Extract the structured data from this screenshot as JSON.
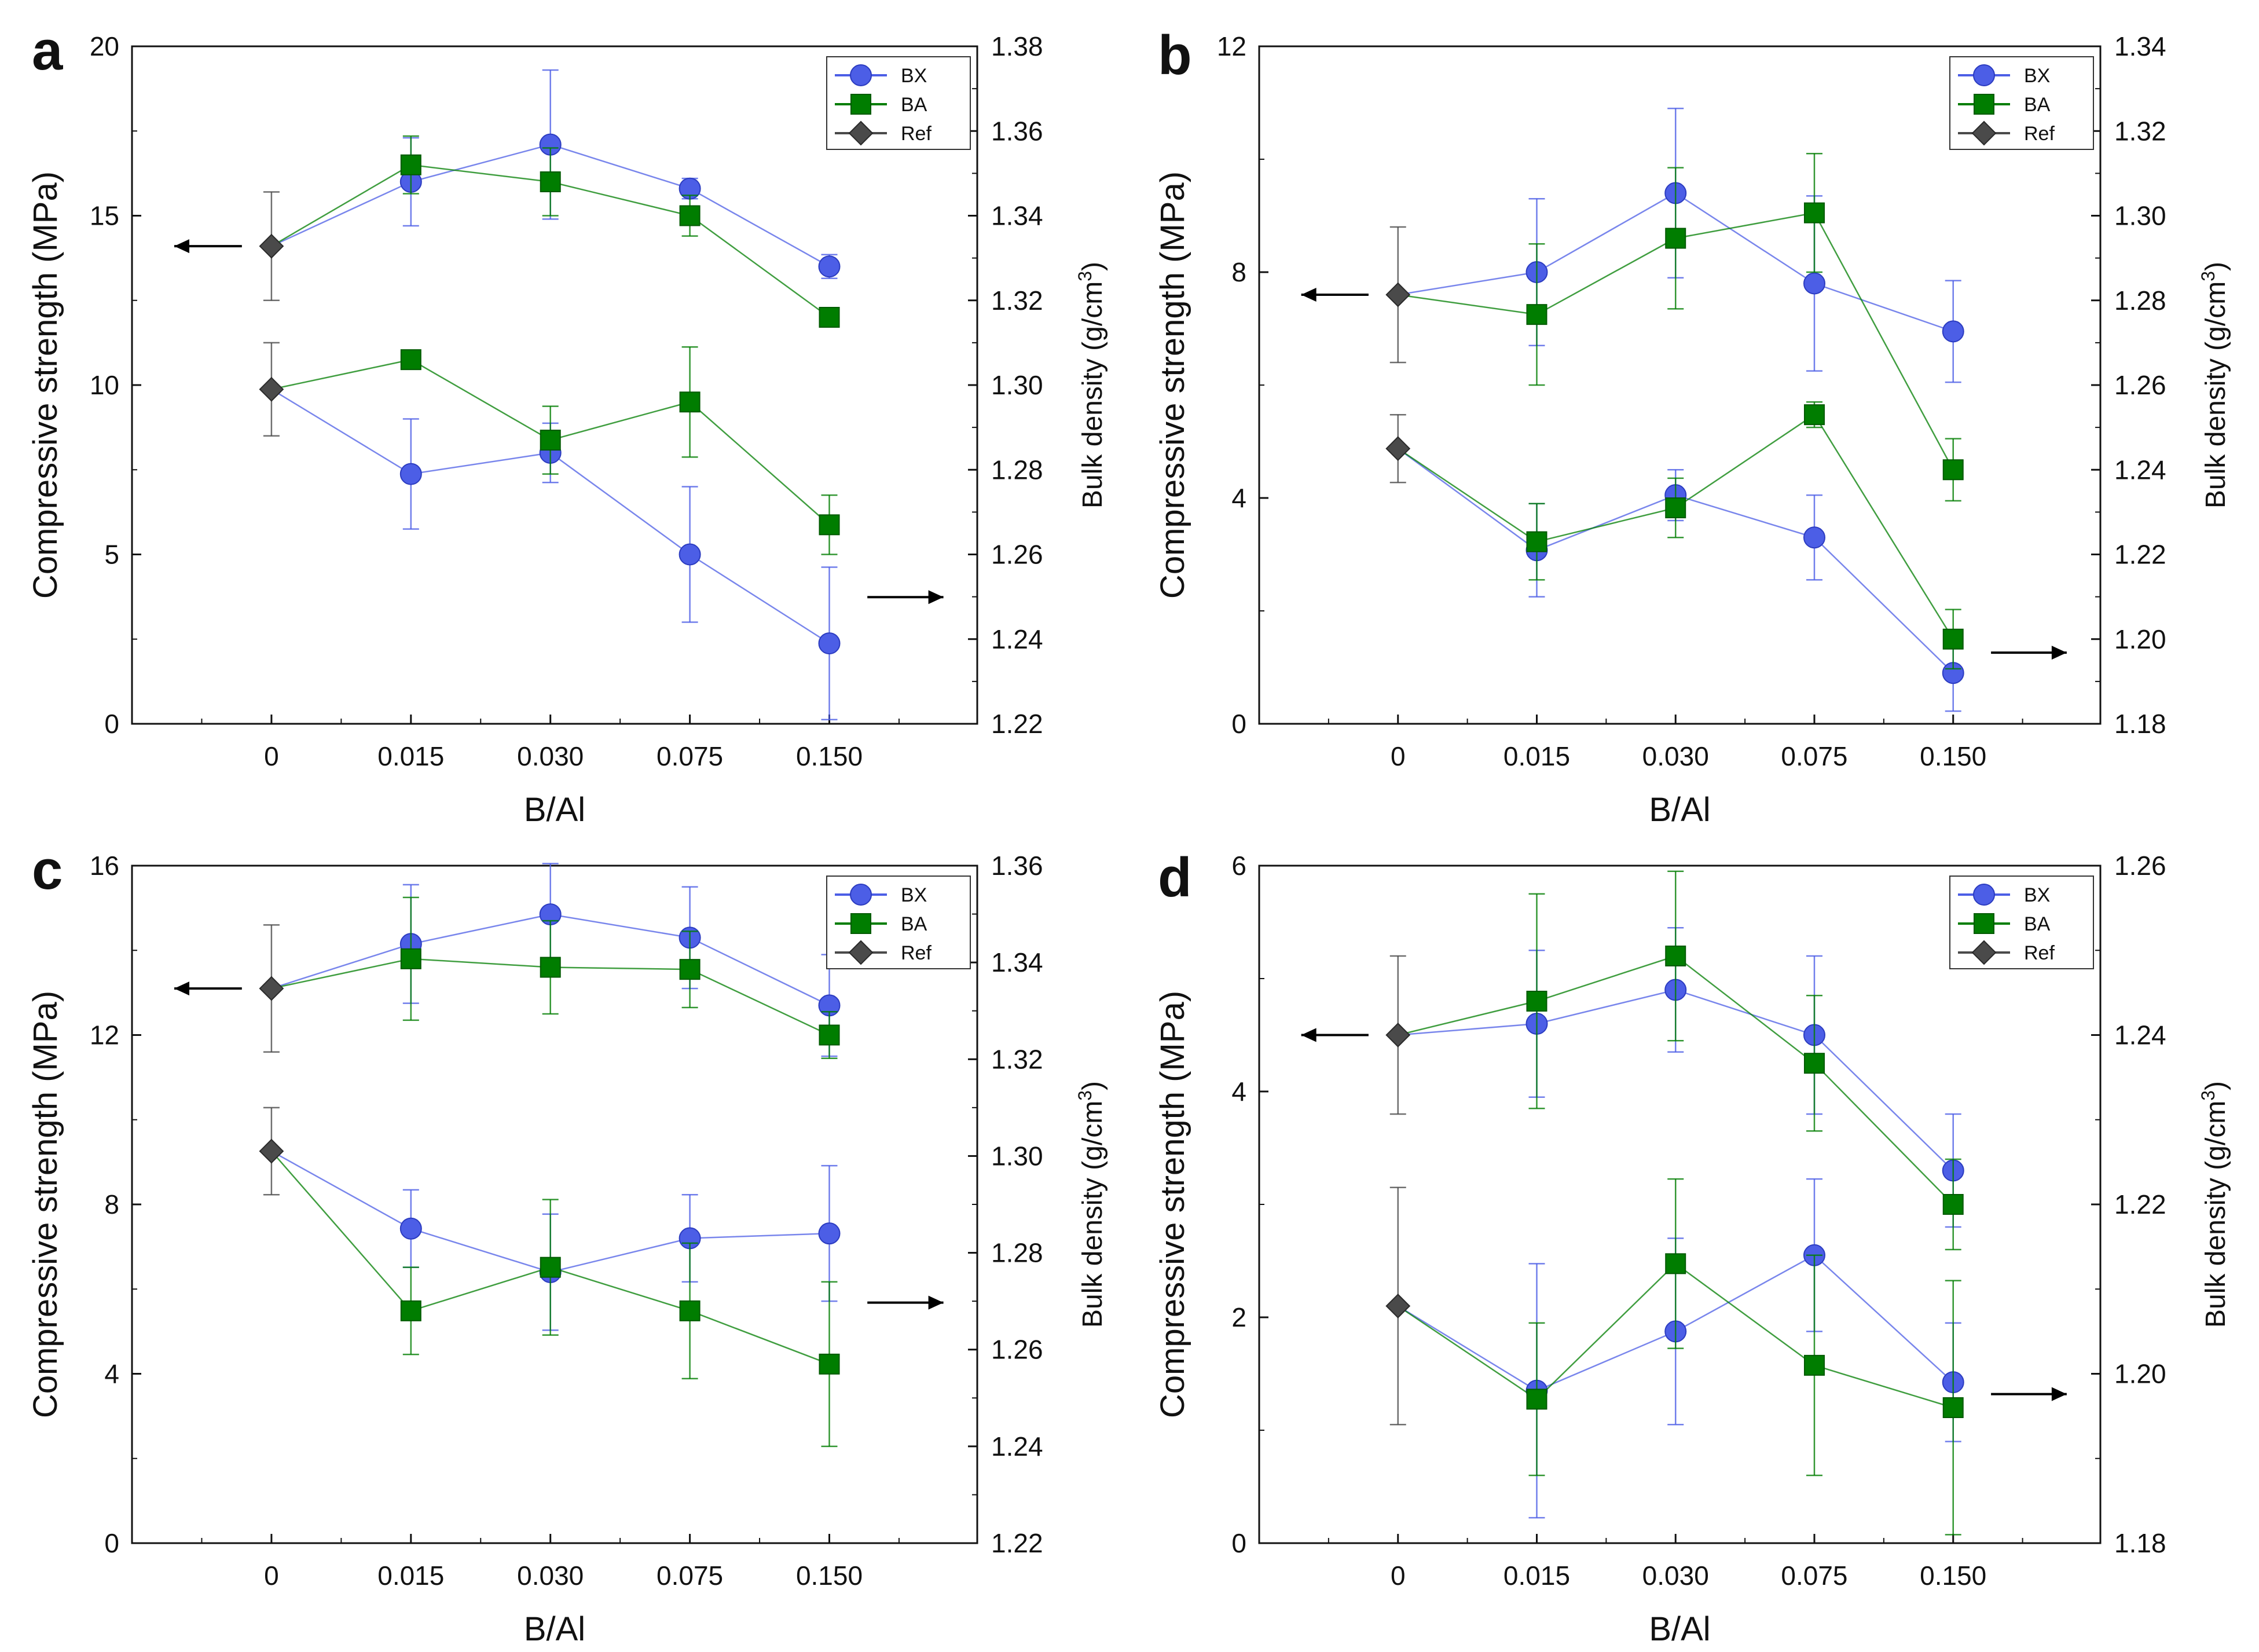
{
  "figure": {
    "panels": [
      {
        "letter": "a"
      },
      {
        "letter": "b"
      },
      {
        "letter": "c"
      },
      {
        "letter": "d"
      }
    ]
  },
  "colors": {
    "BX": "#4c5ee6",
    "BA": "#007d00",
    "Ref": "#4a4a4a",
    "axis": "#111111"
  },
  "chart_data": [
    {
      "type": "line",
      "panel": "a",
      "xlabel": "B/Al",
      "categories": [
        "0",
        "0.015",
        "0.030",
        "0.075",
        "0.150"
      ],
      "ylabel_left": "Compressive strength (MPa)",
      "ylabel_right": "Bulk density (g/cm3)",
      "ylim_left": [
        0,
        20
      ],
      "yticks_left": [
        "0",
        "5",
        "10",
        "15",
        "20"
      ],
      "ylim_right": [
        1.22,
        1.38
      ],
      "yticks_right": [
        "1.22",
        "1.24",
        "1.26",
        "1.28",
        "1.30",
        "1.32",
        "1.34",
        "1.36",
        "1.38"
      ],
      "legend": [
        "BX",
        "BA",
        "Ref"
      ],
      "legend_position": "top-right",
      "arrows": {
        "strength": "left",
        "density": "right"
      },
      "series": [
        {
          "name": "BX",
          "measure": "compressive_strength",
          "axis": "left",
          "values": [
            null,
            16.0,
            17.1,
            15.8,
            13.5
          ],
          "errors": [
            null,
            1.3,
            2.2,
            0.3,
            0.35
          ]
        },
        {
          "name": "BA",
          "measure": "compressive_strength",
          "axis": "left",
          "values": [
            null,
            16.5,
            16.0,
            15.0,
            12.0
          ],
          "errors": [
            null,
            0.85,
            1.0,
            0.6,
            0.2
          ]
        },
        {
          "name": "Ref",
          "measure": "compressive_strength",
          "axis": "left",
          "values": [
            14.1,
            null,
            null,
            null,
            null
          ],
          "errors": [
            1.6,
            null,
            null,
            null,
            null
          ]
        },
        {
          "name": "BX",
          "measure": "bulk_density",
          "axis": "right",
          "values": [
            null,
            1.279,
            1.284,
            1.26,
            1.239
          ],
          "errors": [
            null,
            0.013,
            0.007,
            0.016,
            0.018
          ]
        },
        {
          "name": "BA",
          "measure": "bulk_density",
          "axis": "right",
          "values": [
            null,
            1.306,
            1.287,
            1.296,
            1.267
          ],
          "errors": [
            null,
            0.001,
            0.008,
            0.013,
            0.007
          ]
        },
        {
          "name": "Ref",
          "measure": "bulk_density",
          "axis": "right",
          "values": [
            1.299,
            null,
            null,
            null,
            null
          ],
          "errors": [
            0.011,
            null,
            null,
            null,
            null
          ]
        }
      ]
    },
    {
      "type": "line",
      "panel": "b",
      "xlabel": "B/Al",
      "categories": [
        "0",
        "0.015",
        "0.030",
        "0.075",
        "0.150"
      ],
      "ylabel_left": "Compressive strength (MPa)",
      "ylabel_right": "Bulk density (g/cm3)",
      "ylim_left": [
        0,
        12
      ],
      "yticks_left": [
        "0",
        "4",
        "8",
        "12"
      ],
      "ylim_right": [
        1.18,
        1.34
      ],
      "yticks_right": [
        "1.18",
        "1.20",
        "1.22",
        "1.24",
        "1.26",
        "1.28",
        "1.30",
        "1.32",
        "1.34"
      ],
      "legend": [
        "BX",
        "BA",
        "Ref"
      ],
      "legend_position": "top-right",
      "arrows": {
        "strength": "left",
        "density": "right"
      },
      "series": [
        {
          "name": "BX",
          "measure": "compressive_strength",
          "axis": "left",
          "values": [
            null,
            8.0,
            9.4,
            7.8,
            6.95
          ],
          "errors": [
            null,
            1.3,
            1.5,
            1.55,
            0.9
          ]
        },
        {
          "name": "BA",
          "measure": "compressive_strength",
          "axis": "left",
          "values": [
            null,
            7.25,
            8.6,
            9.05,
            4.5
          ],
          "errors": [
            null,
            1.25,
            1.25,
            1.05,
            0.55
          ]
        },
        {
          "name": "Ref",
          "measure": "compressive_strength",
          "axis": "left",
          "values": [
            7.6,
            null,
            null,
            null,
            null
          ],
          "errors": [
            1.2,
            null,
            null,
            null,
            null
          ]
        },
        {
          "name": "BX",
          "measure": "bulk_density",
          "axis": "right",
          "values": [
            null,
            1.221,
            1.234,
            1.224,
            1.192
          ],
          "errors": [
            null,
            0.011,
            0.006,
            0.01,
            0.009
          ]
        },
        {
          "name": "BA",
          "measure": "bulk_density",
          "axis": "right",
          "values": [
            null,
            1.223,
            1.231,
            1.253,
            1.2
          ],
          "errors": [
            null,
            0.009,
            0.007,
            0.003,
            0.007
          ]
        },
        {
          "name": "Ref",
          "measure": "bulk_density",
          "axis": "right",
          "values": [
            1.245,
            null,
            null,
            null,
            null
          ],
          "errors": [
            0.008,
            null,
            null,
            null,
            null
          ]
        }
      ]
    },
    {
      "type": "line",
      "panel": "c",
      "xlabel": "B/Al",
      "categories": [
        "0",
        "0.015",
        "0.030",
        "0.075",
        "0.150"
      ],
      "ylabel_left": "Compressive strength (MPa)",
      "ylabel_right": "Bulk density (g/cm3)",
      "ylim_left": [
        0,
        16
      ],
      "yticks_left": [
        "0",
        "4",
        "8",
        "12",
        "16"
      ],
      "ylim_right": [
        1.22,
        1.36
      ],
      "yticks_right": [
        "1.22",
        "1.24",
        "1.26",
        "1.28",
        "1.30",
        "1.32",
        "1.34",
        "1.36"
      ],
      "legend": [
        "BX",
        "BA",
        "Ref"
      ],
      "legend_position": "top-right",
      "arrows": {
        "strength": "left",
        "density": "right"
      },
      "series": [
        {
          "name": "BX",
          "measure": "compressive_strength",
          "axis": "left",
          "values": [
            null,
            14.15,
            14.85,
            14.3,
            12.7
          ],
          "errors": [
            null,
            1.4,
            1.2,
            1.2,
            1.2
          ]
        },
        {
          "name": "BA",
          "measure": "compressive_strength",
          "axis": "left",
          "values": [
            null,
            13.8,
            13.6,
            13.55,
            12.0
          ],
          "errors": [
            null,
            1.45,
            1.1,
            0.9,
            0.55
          ]
        },
        {
          "name": "Ref",
          "measure": "compressive_strength",
          "axis": "left",
          "values": [
            13.1,
            null,
            null,
            null,
            null
          ],
          "errors": [
            1.5,
            null,
            null,
            null,
            null
          ]
        },
        {
          "name": "BX",
          "measure": "bulk_density",
          "axis": "right",
          "values": [
            null,
            1.285,
            1.276,
            1.283,
            1.284
          ],
          "errors": [
            null,
            0.008,
            0.012,
            0.009,
            0.014
          ]
        },
        {
          "name": "BA",
          "measure": "bulk_density",
          "axis": "right",
          "values": [
            null,
            1.268,
            1.277,
            1.268,
            1.257
          ],
          "errors": [
            null,
            0.009,
            0.014,
            0.014,
            0.017
          ]
        },
        {
          "name": "Ref",
          "measure": "bulk_density",
          "axis": "right",
          "values": [
            1.301,
            null,
            null,
            null,
            null
          ],
          "errors": [
            0.009,
            null,
            null,
            null,
            null
          ]
        }
      ]
    },
    {
      "type": "line",
      "panel": "d",
      "xlabel": "B/Al",
      "categories": [
        "0",
        "0.015",
        "0.030",
        "0.075",
        "0.150"
      ],
      "ylabel_left": "Compressive strength (MPa)",
      "ylabel_right": "Bulk density (g/cm3)",
      "ylim_left": [
        0,
        6
      ],
      "yticks_left": [
        "0",
        "2",
        "4",
        "6"
      ],
      "ylim_right": [
        1.18,
        1.26
      ],
      "yticks_right": [
        "1.18",
        "1.20",
        "1.22",
        "1.24",
        "1.26"
      ],
      "legend": [
        "BX",
        "BA",
        "Ref"
      ],
      "legend_position": "top-right",
      "arrows": {
        "strength": "left",
        "density": "right"
      },
      "series": [
        {
          "name": "BX",
          "measure": "compressive_strength",
          "axis": "left",
          "values": [
            null,
            4.6,
            4.9,
            4.5,
            3.3
          ],
          "errors": [
            null,
            0.65,
            0.55,
            0.7,
            0.5
          ]
        },
        {
          "name": "BA",
          "measure": "compressive_strength",
          "axis": "left",
          "values": [
            null,
            4.8,
            5.2,
            4.25,
            3.0
          ],
          "errors": [
            null,
            0.95,
            0.75,
            0.6,
            0.4
          ]
        },
        {
          "name": "Ref",
          "measure": "compressive_strength",
          "axis": "left",
          "values": [
            4.5,
            null,
            null,
            null,
            null
          ],
          "errors": [
            0.7,
            null,
            null,
            null,
            null
          ]
        },
        {
          "name": "BX",
          "measure": "bulk_density",
          "axis": "right",
          "values": [
            null,
            1.198,
            1.205,
            1.214,
            1.199
          ],
          "errors": [
            null,
            0.015,
            0.011,
            0.009,
            0.007
          ]
        },
        {
          "name": "BA",
          "measure": "bulk_density",
          "axis": "right",
          "values": [
            null,
            1.197,
            1.213,
            1.201,
            1.196
          ],
          "errors": [
            null,
            0.009,
            0.01,
            0.013,
            0.015
          ]
        },
        {
          "name": "Ref",
          "measure": "bulk_density",
          "axis": "right",
          "values": [
            1.208,
            null,
            null,
            null,
            null
          ],
          "errors": [
            0.014,
            null,
            null,
            null,
            null
          ]
        }
      ]
    }
  ]
}
